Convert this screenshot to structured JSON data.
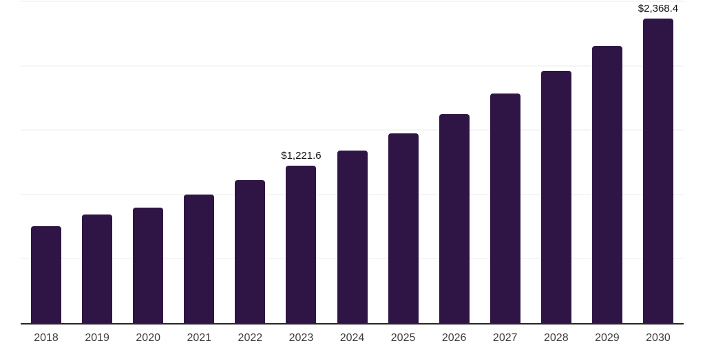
{
  "chart_data": {
    "type": "bar",
    "title": "",
    "xlabel": "",
    "ylabel": "",
    "categories": [
      "2018",
      "2019",
      "2020",
      "2021",
      "2022",
      "2023",
      "2024",
      "2025",
      "2026",
      "2027",
      "2028",
      "2029",
      "2030"
    ],
    "values": [
      755.0,
      843.0,
      900.0,
      1000.0,
      1113.0,
      1221.6,
      1342.8,
      1476.0,
      1622.4,
      1783.4,
      1960.3,
      2154.8,
      2368.4
    ],
    "value_labels": [
      "",
      "",
      "",
      "",
      "",
      "$1,221.6",
      "",
      "",
      "",
      "",
      "",
      "",
      "$2,368.4"
    ],
    "ylim": [
      0,
      2500
    ],
    "gridline_values": [
      500,
      1000,
      1500,
      2000,
      2500
    ],
    "grid": true,
    "legend": "none",
    "colors": {
      "bar": "#2f1545",
      "axis_line": "#262626",
      "gridline": "#f5f5f5",
      "x_label_text": "#3d3d3d",
      "value_label_text": "#111111",
      "background": "#ffffff"
    }
  }
}
